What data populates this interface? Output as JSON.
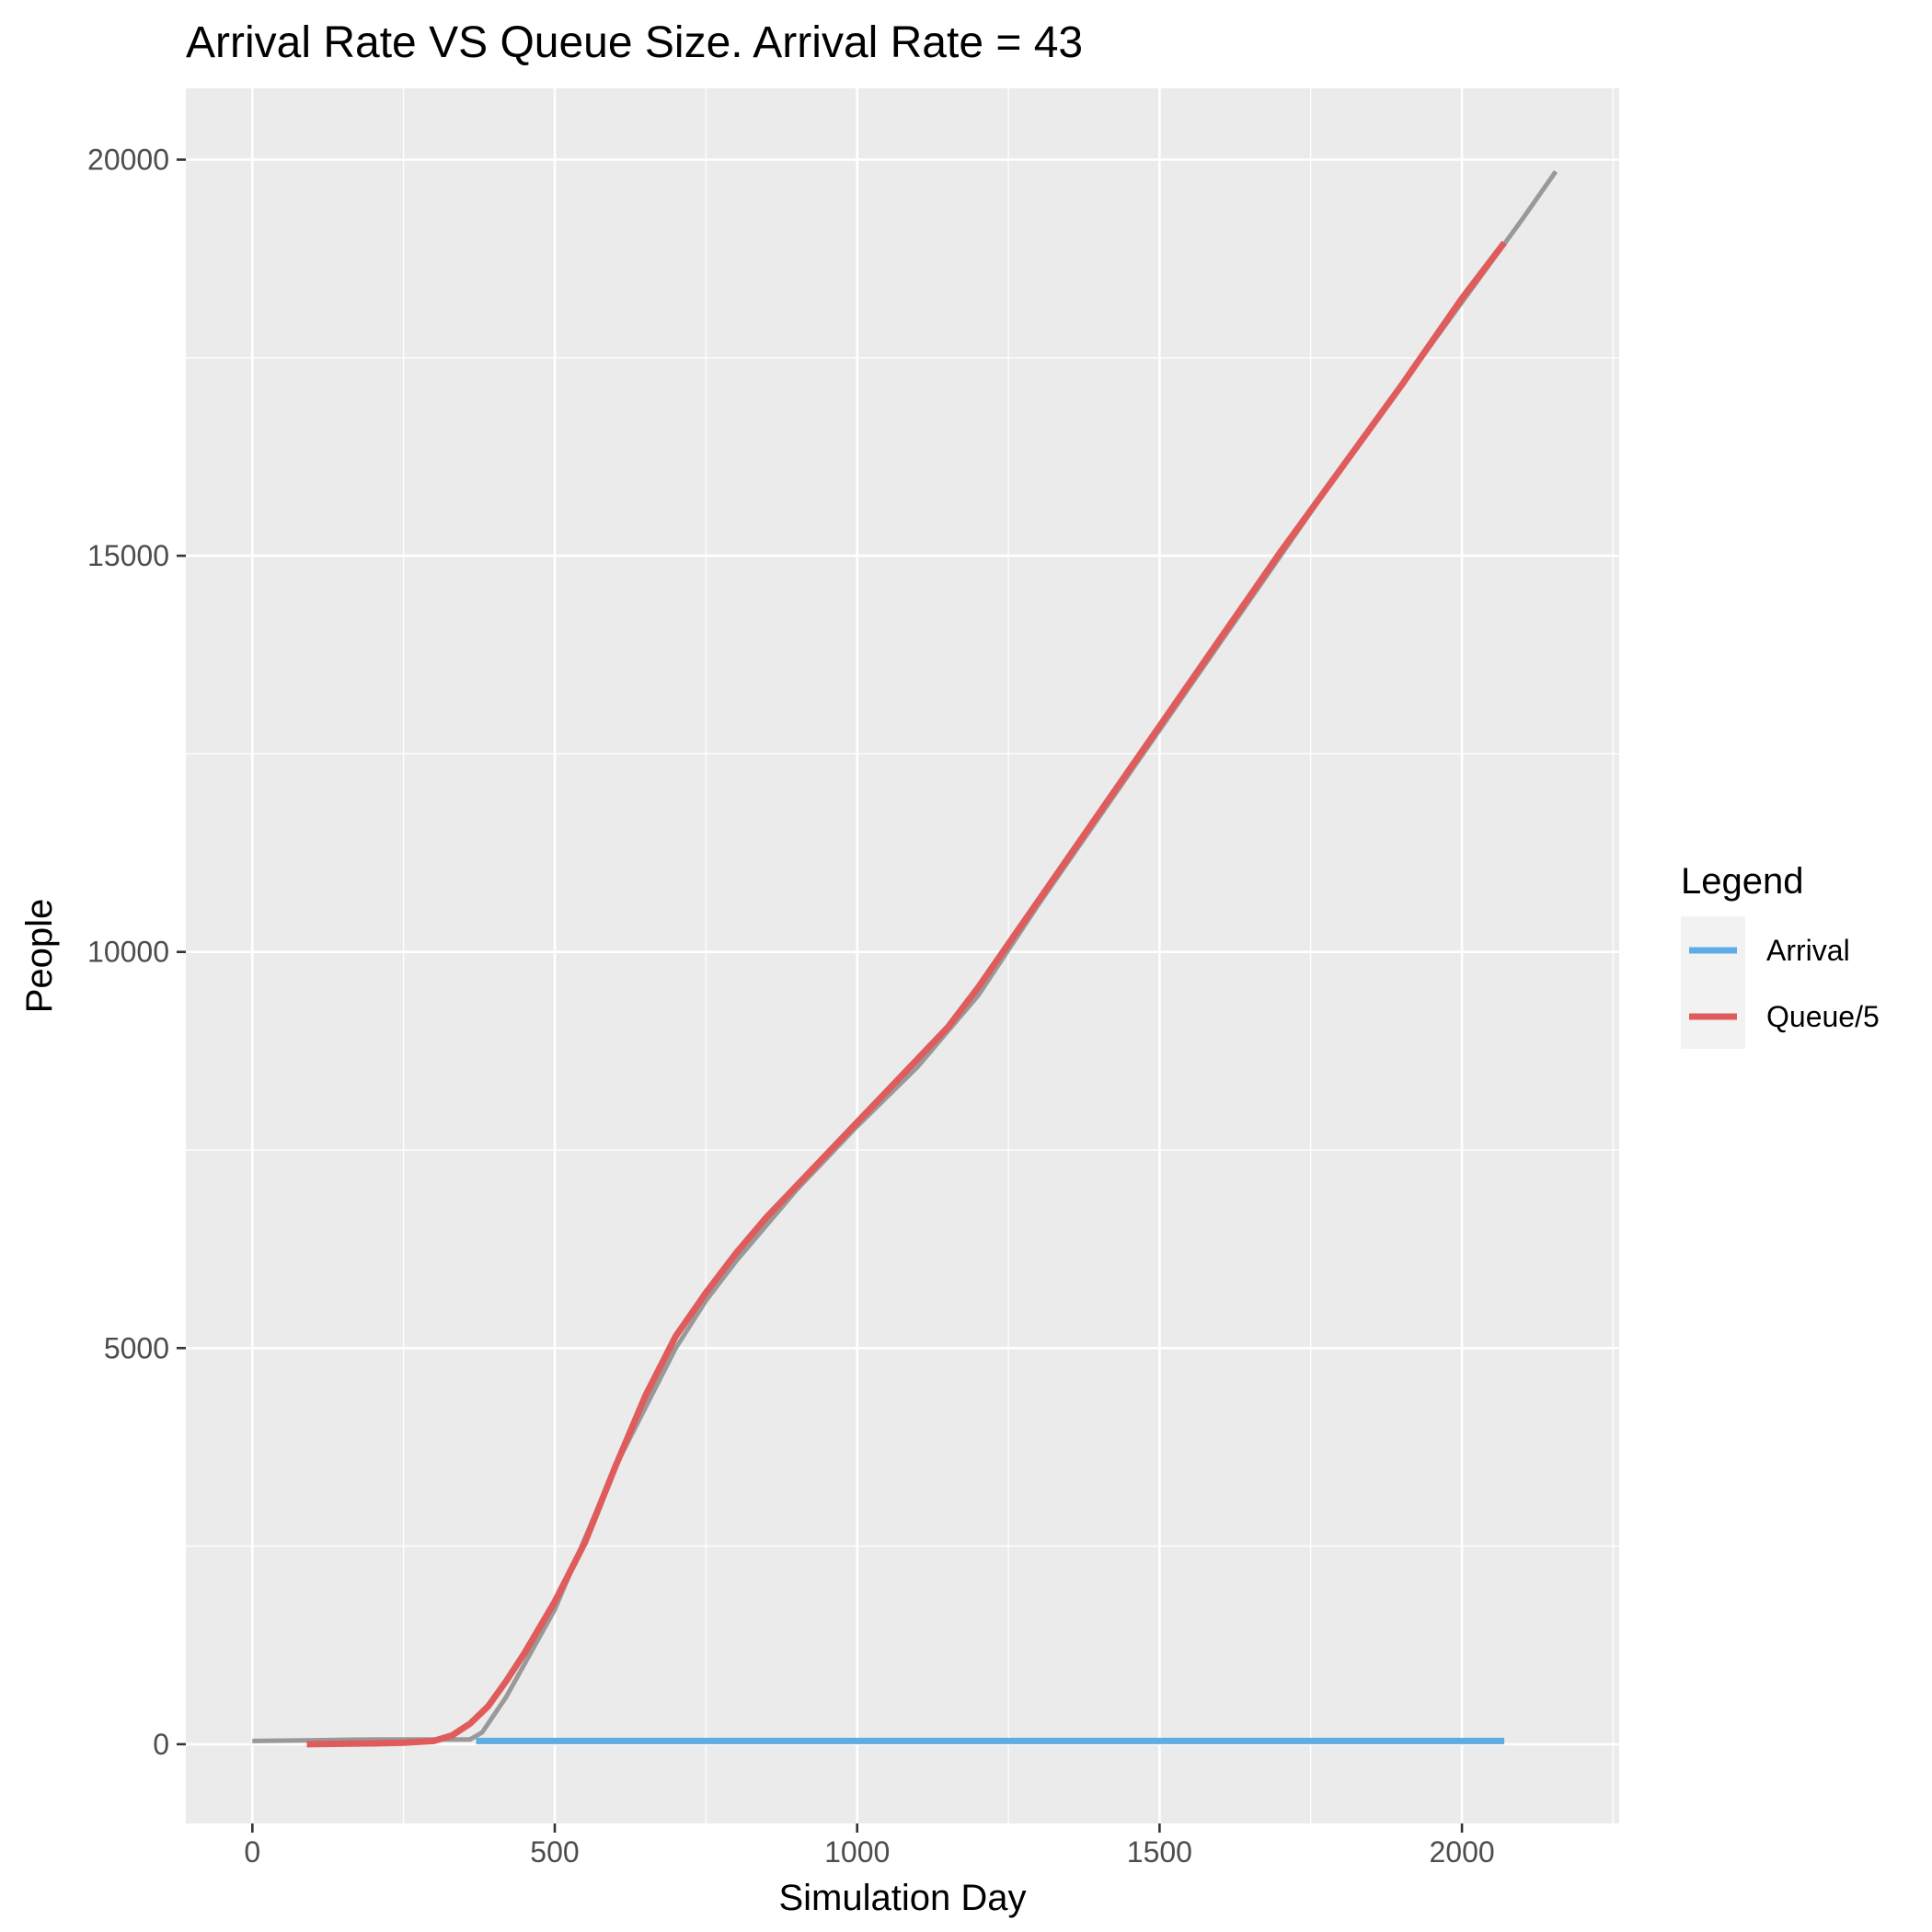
{
  "chart_data": {
    "type": "line",
    "title": "Arrival Rate VS Queue Size. Arrival Rate = 43",
    "xlabel": "Simulation Day",
    "ylabel": "People",
    "xlim": [
      -110,
      2260
    ],
    "ylim": [
      -1000,
      20900
    ],
    "x_ticks": [
      0,
      500,
      1000,
      1500,
      2000
    ],
    "x_minor_ticks": [
      250,
      750,
      1250,
      1750,
      2250
    ],
    "y_ticks": [
      0,
      5000,
      10000,
      15000,
      20000
    ],
    "y_minor_ticks": [
      2500,
      7500,
      12500,
      17500
    ],
    "grid": true,
    "legend": {
      "title": "Legend",
      "position": "right",
      "items": [
        {
          "label": "Arrival",
          "color": "#5dade2"
        },
        {
          "label": "Queue/5",
          "color": "#e05b5b"
        }
      ]
    },
    "colors": {
      "panel": "#ebebeb",
      "grid": "#ffffff",
      "background_series": "#999999"
    },
    "series": [
      {
        "name": "Arrival",
        "color": "#5dade2",
        "x": [
          370,
          2070
        ],
        "y": [
          40,
          40
        ]
      },
      {
        "name": "Queue/5",
        "color": "#e05b5b",
        "x": [
          90,
          200,
          250,
          300,
          330,
          360,
          390,
          420,
          450,
          500,
          550,
          600,
          650,
          700,
          750,
          800,
          850,
          900,
          950,
          1000,
          1050,
          1100,
          1150,
          1200,
          1250,
          1300,
          1400,
          1500,
          1600,
          1700,
          1800,
          1900,
          2000,
          2070
        ],
        "y": [
          0,
          10,
          20,
          40,
          110,
          260,
          480,
          800,
          1150,
          1800,
          2550,
          3500,
          4400,
          5150,
          5700,
          6200,
          6650,
          7050,
          7450,
          7850,
          8250,
          8650,
          9050,
          9550,
          10100,
          10650,
          11750,
          12850,
          13950,
          15050,
          16100,
          17150,
          18250,
          18950
        ]
      },
      {
        "color": "#999999",
        "x": [
          0,
          100,
          200,
          300,
          360,
          380,
          420,
          500,
          600,
          700,
          750,
          800,
          900,
          1000,
          1100,
          1200,
          1300,
          1400,
          1500,
          1600,
          1700,
          1800,
          1900,
          2000,
          2100,
          2155
        ],
        "y": [
          40,
          50,
          60,
          60,
          60,
          150,
          600,
          1700,
          3500,
          5000,
          5600,
          6100,
          7000,
          7800,
          8550,
          9450,
          10600,
          11700,
          12800,
          13900,
          15000,
          16100,
          17150,
          18200,
          19250,
          19850
        ]
      }
    ]
  }
}
